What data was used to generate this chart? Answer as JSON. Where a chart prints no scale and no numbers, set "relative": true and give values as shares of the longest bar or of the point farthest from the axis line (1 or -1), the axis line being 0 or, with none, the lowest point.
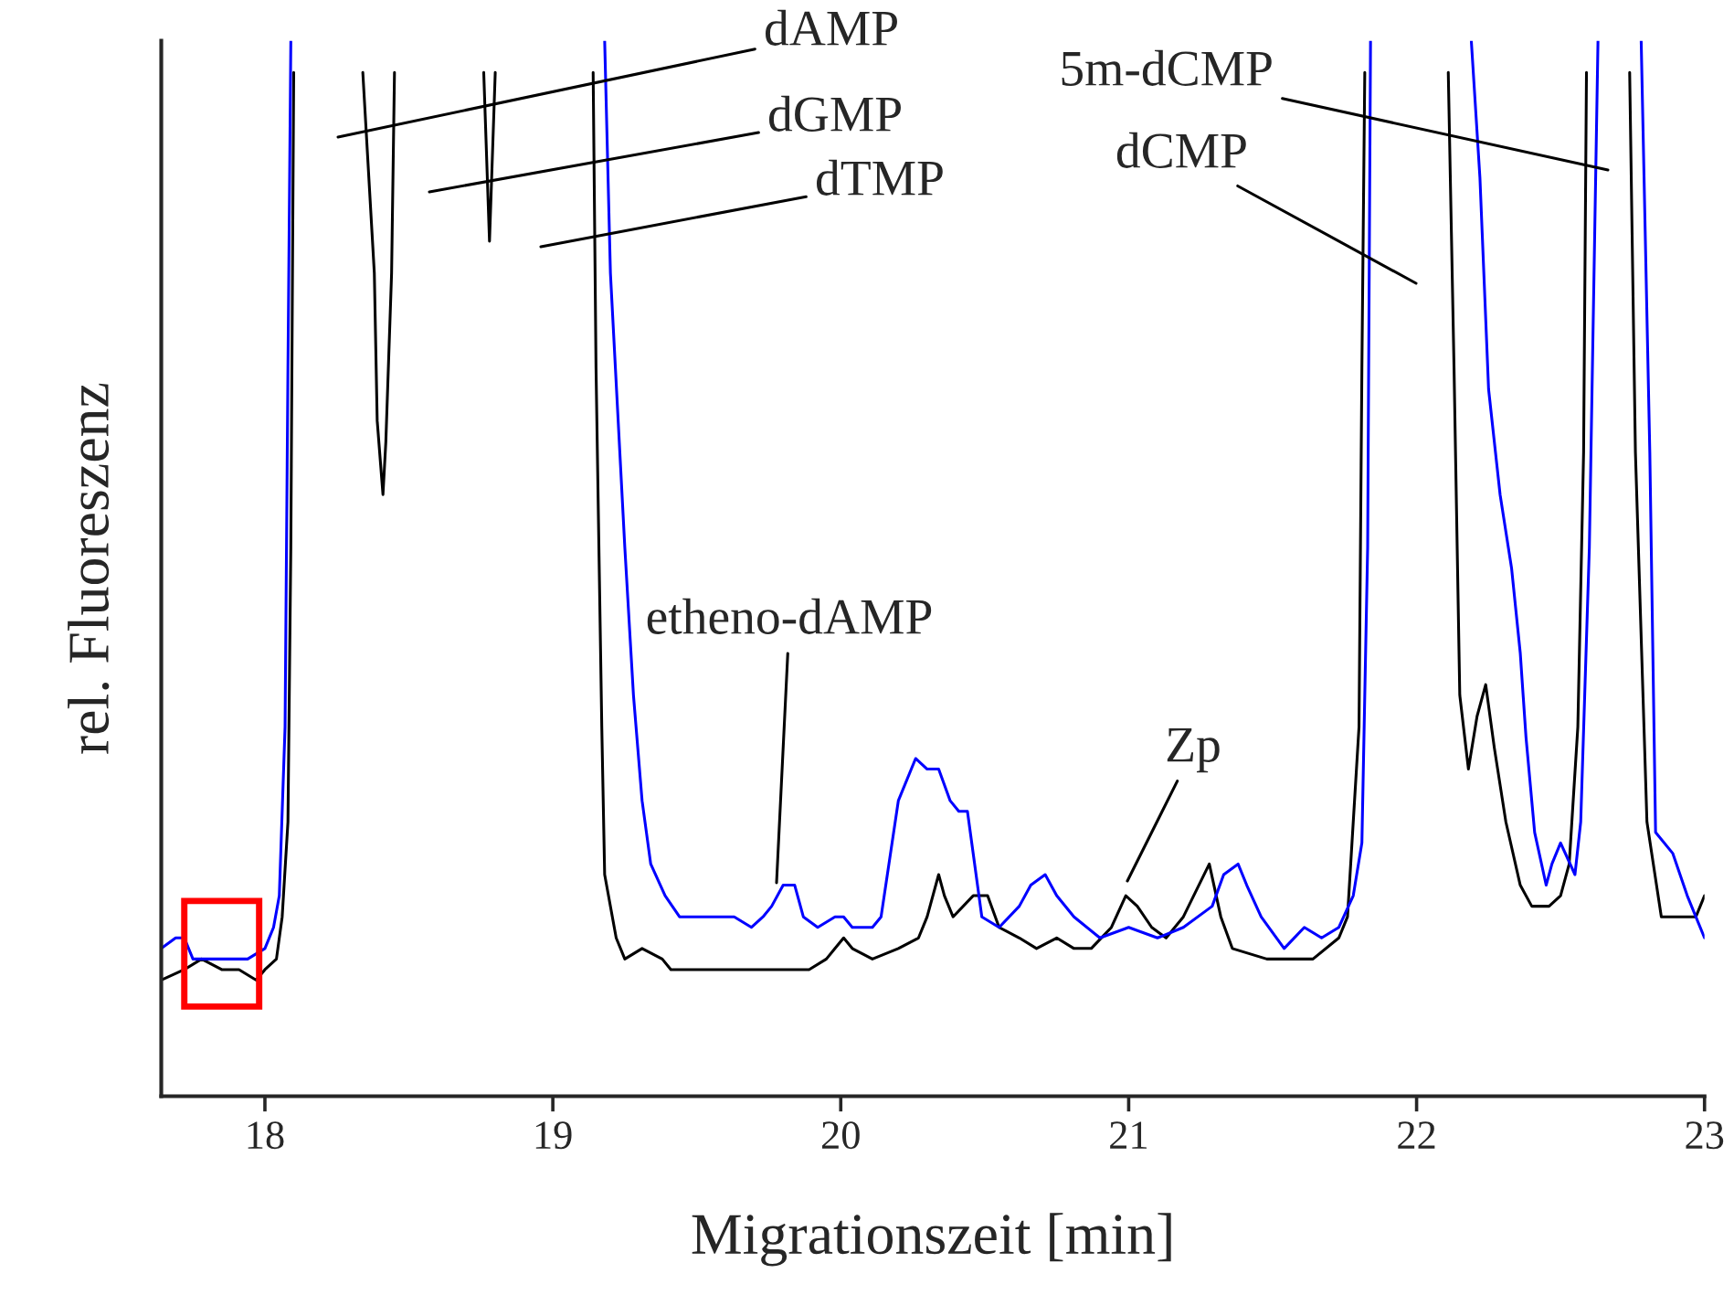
{
  "chart_data": {
    "type": "line",
    "relative": true,
    "xlabel": "Migrationszeit [min]",
    "ylabel": "rel. Fluoreszenz",
    "xlim": [
      17.64,
      23.0
    ],
    "xticks": [
      18,
      19,
      20,
      21,
      22,
      23
    ],
    "grid": false,
    "marker": "none",
    "line_style": "solid",
    "series": [
      {
        "color": "#000000",
        "x": [
          17.64,
          17.72,
          17.78,
          17.85,
          17.91,
          17.97,
          18.0,
          18.04,
          18.06,
          18.08,
          18.09,
          18.1,
          18.2,
          18.34,
          18.38,
          18.39,
          18.41,
          18.42,
          18.44,
          18.45,
          18.6,
          18.76,
          18.78,
          18.8,
          19.0,
          19.14,
          19.15,
          19.17,
          19.18,
          19.22,
          19.25,
          19.31,
          19.38,
          19.41,
          19.44,
          19.5,
          19.63,
          19.76,
          19.89,
          19.95,
          19.98,
          20.01,
          20.04,
          20.11,
          20.2,
          20.27,
          20.3,
          20.34,
          20.36,
          20.39,
          20.46,
          20.51,
          20.55,
          20.62,
          20.68,
          20.75,
          20.81,
          20.87,
          20.94,
          20.99,
          21.03,
          21.08,
          21.13,
          21.19,
          21.28,
          21.32,
          21.36,
          21.48,
          21.54,
          21.64,
          21.73,
          21.76,
          21.8,
          21.81,
          21.82,
          22.0,
          22.11,
          22.13,
          22.15,
          22.18,
          22.21,
          22.24,
          22.27,
          22.31,
          22.36,
          22.4,
          22.46,
          22.5,
          22.53,
          22.56,
          22.58,
          22.59,
          22.65,
          22.74,
          22.76,
          22.8,
          22.85,
          22.89,
          22.94,
          22.97,
          23.0
        ],
        "values": [
          0.11,
          0.12,
          0.13,
          0.12,
          0.12,
          0.11,
          0.12,
          0.13,
          0.17,
          0.26,
          0.52,
          0.97,
          null,
          0.97,
          0.78,
          0.64,
          0.57,
          0.62,
          0.78,
          0.97,
          null,
          0.97,
          0.81,
          0.97,
          null,
          0.97,
          0.69,
          0.35,
          0.21,
          0.15,
          0.13,
          0.14,
          0.13,
          0.12,
          0.12,
          0.12,
          0.12,
          0.12,
          0.12,
          0.13,
          0.14,
          0.15,
          0.14,
          0.13,
          0.14,
          0.15,
          0.17,
          0.21,
          0.19,
          0.17,
          0.19,
          0.19,
          0.16,
          0.15,
          0.14,
          0.15,
          0.14,
          0.14,
          0.16,
          0.19,
          0.18,
          0.16,
          0.15,
          0.17,
          0.22,
          0.17,
          0.14,
          0.13,
          0.13,
          0.13,
          0.15,
          0.17,
          0.35,
          0.69,
          0.97,
          null,
          0.97,
          0.69,
          0.38,
          0.31,
          0.36,
          0.39,
          0.33,
          0.26,
          0.2,
          0.18,
          0.18,
          0.19,
          0.22,
          0.35,
          0.61,
          0.97,
          null,
          0.97,
          0.61,
          0.26,
          0.17,
          0.17,
          0.17,
          0.17,
          0.19
        ]
      },
      {
        "color": "#0000ff",
        "x": [
          17.64,
          17.69,
          17.72,
          17.75,
          17.82,
          17.88,
          17.94,
          18.0,
          18.03,
          18.05,
          18.07,
          18.08,
          18.09,
          18.5,
          19.18,
          19.2,
          19.25,
          19.28,
          19.31,
          19.34,
          19.39,
          19.44,
          19.5,
          19.54,
          19.57,
          19.63,
          19.69,
          19.73,
          19.76,
          19.8,
          19.84,
          19.87,
          19.92,
          19.98,
          20.01,
          20.04,
          20.08,
          20.11,
          20.14,
          20.2,
          20.26,
          20.3,
          20.34,
          20.38,
          20.41,
          20.44,
          20.49,
          20.55,
          20.62,
          20.66,
          20.71,
          20.75,
          20.81,
          20.9,
          21.0,
          21.1,
          21.19,
          21.29,
          21.33,
          21.38,
          21.41,
          21.46,
          21.54,
          21.61,
          21.67,
          21.73,
          21.78,
          21.81,
          21.83,
          21.84,
          22.0,
          22.19,
          22.22,
          22.25,
          22.29,
          22.33,
          22.36,
          22.38,
          22.41,
          22.45,
          22.47,
          22.5,
          22.55,
          22.57,
          22.6,
          22.63,
          22.67,
          22.78,
          22.81,
          22.83,
          22.89,
          22.94,
          23.0
        ],
        "values": [
          0.14,
          0.15,
          0.15,
          0.13,
          0.13,
          0.13,
          0.13,
          0.14,
          0.16,
          0.19,
          0.35,
          0.69,
          1.0,
          null,
          1.0,
          0.78,
          0.52,
          0.38,
          0.28,
          0.22,
          0.19,
          0.17,
          0.17,
          0.17,
          0.17,
          0.17,
          0.16,
          0.17,
          0.18,
          0.2,
          0.2,
          0.17,
          0.16,
          0.17,
          0.17,
          0.16,
          0.16,
          0.16,
          0.17,
          0.28,
          0.32,
          0.31,
          0.31,
          0.28,
          0.27,
          0.27,
          0.17,
          0.16,
          0.18,
          0.2,
          0.21,
          0.19,
          0.17,
          0.15,
          0.16,
          0.15,
          0.16,
          0.18,
          0.21,
          0.22,
          0.2,
          0.17,
          0.14,
          0.16,
          0.15,
          0.16,
          0.19,
          0.24,
          0.52,
          1.0,
          null,
          1.0,
          0.87,
          0.67,
          0.57,
          0.5,
          0.42,
          0.34,
          0.25,
          0.2,
          0.22,
          0.24,
          0.21,
          0.26,
          0.52,
          1.0,
          null,
          1.0,
          0.61,
          0.25,
          0.23,
          0.19,
          0.15
        ]
      }
    ],
    "annotations": [
      "dAMP",
      "dGMP",
      "dTMP",
      "5m-dCMP",
      "dCMP",
      "etheno-dAMP",
      "Zp"
    ]
  }
}
